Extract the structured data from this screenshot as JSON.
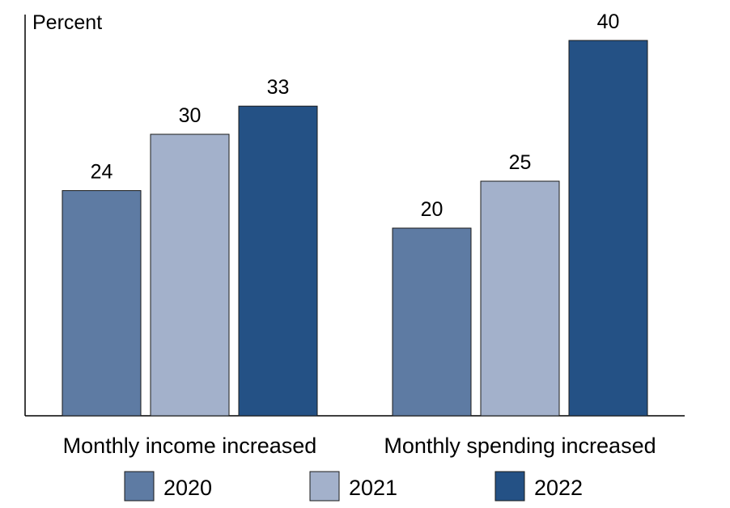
{
  "chart_data": {
    "type": "bar",
    "title": "",
    "ylabel": "Percent",
    "xlabel": "",
    "ylim": [
      0,
      40
    ],
    "grid": false,
    "legend_position": "bottom",
    "categories": [
      "Monthly income increased",
      "Monthly spending increased"
    ],
    "series": [
      {
        "name": "2020",
        "color": "#5e7ba3",
        "values": [
          24,
          20
        ]
      },
      {
        "name": "2021",
        "color": "#a3b1cb",
        "values": [
          30,
          25
        ]
      },
      {
        "name": "2022",
        "color": "#245185",
        "values": [
          33,
          40
        ]
      }
    ]
  }
}
